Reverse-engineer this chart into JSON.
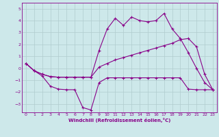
{
  "xlabel": "Windchill (Refroidissement éolien,°C)",
  "xlim": [
    -0.5,
    23.5
  ],
  "ylim": [
    -3.7,
    5.5
  ],
  "xticks": [
    0,
    1,
    2,
    3,
    4,
    5,
    6,
    7,
    8,
    9,
    10,
    11,
    12,
    13,
    14,
    15,
    16,
    17,
    18,
    19,
    20,
    21,
    22,
    23
  ],
  "yticks": [
    -3,
    -2,
    -1,
    0,
    1,
    2,
    3,
    4,
    5
  ],
  "background_color": "#cde8ea",
  "grid_color": "#b0ccce",
  "line_color": "#880088",
  "line1_y": [
    0.4,
    -0.2,
    -0.65,
    -1.5,
    -1.75,
    -1.8,
    -1.8,
    -3.3,
    -3.5,
    -1.2,
    -0.8,
    -0.8,
    -0.8,
    -0.8,
    -0.8,
    -0.8,
    -0.8,
    -0.8,
    -0.8,
    -0.8,
    -1.75,
    -1.8,
    -1.8,
    -1.8
  ],
  "line2_y": [
    0.4,
    -0.2,
    -0.5,
    -0.7,
    -0.75,
    -0.75,
    -0.75,
    -0.75,
    -0.75,
    1.5,
    3.3,
    4.2,
    3.6,
    4.3,
    4.0,
    3.9,
    4.0,
    4.6,
    3.3,
    2.5,
    1.3,
    0.0,
    -1.2,
    -1.8
  ],
  "line3_y": [
    0.4,
    -0.2,
    -0.5,
    -0.7,
    -0.75,
    -0.75,
    -0.75,
    -0.75,
    -0.75,
    0.1,
    0.4,
    0.7,
    0.9,
    1.1,
    1.3,
    1.5,
    1.7,
    1.9,
    2.1,
    2.4,
    2.5,
    1.8,
    -0.5,
    -1.8
  ]
}
